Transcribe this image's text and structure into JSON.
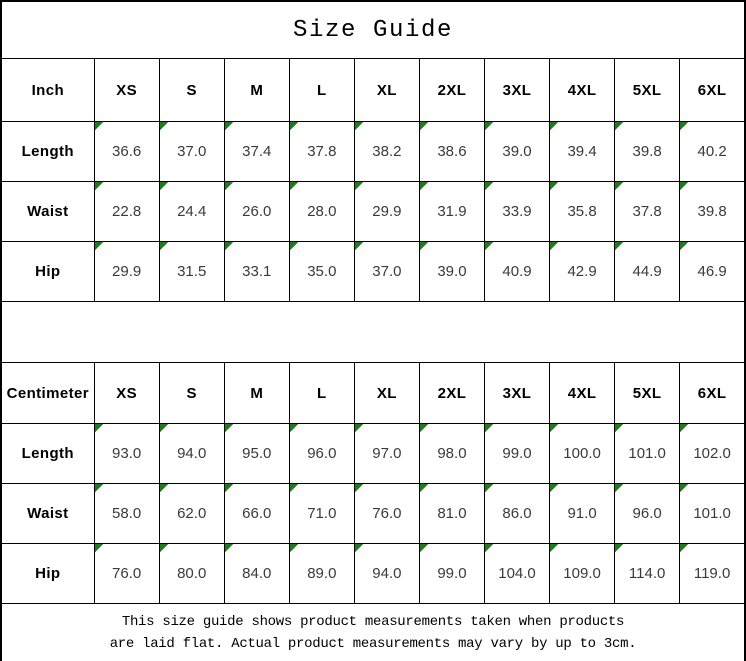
{
  "title": "Size Guide",
  "colors": {
    "background": "#ffffff",
    "border": "#000000",
    "text_indicator_green": "#1e7c1e",
    "value_text": "#3a3a3a"
  },
  "footer_note": {
    "line1": "This size guide shows product measurements taken when products",
    "line2": "are laid flat. Actual product measurements may vary by up to 3cm."
  },
  "chart_data": [
    {
      "type": "table",
      "title": "Size Guide",
      "unit_label": "Inch",
      "sizes": [
        "XS",
        "S",
        "M",
        "L",
        "XL",
        "2XL",
        "3XL",
        "4XL",
        "5XL",
        "6XL"
      ],
      "rows": [
        {
          "label": "Length",
          "values": [
            "36.6",
            "37.0",
            "37.4",
            "37.8",
            "38.2",
            "38.6",
            "39.0",
            "39.4",
            "39.8",
            "40.2"
          ]
        },
        {
          "label": "Waist",
          "values": [
            "22.8",
            "24.4",
            "26.0",
            "28.0",
            "29.9",
            "31.9",
            "33.9",
            "35.8",
            "37.8",
            "39.8"
          ]
        },
        {
          "label": "Hip",
          "values": [
            "29.9",
            "31.5",
            "33.1",
            "35.0",
            "37.0",
            "39.0",
            "40.9",
            "42.9",
            "44.9",
            "46.9"
          ]
        }
      ]
    },
    {
      "type": "table",
      "title": "Size Guide",
      "unit_label": "Centimeter",
      "sizes": [
        "XS",
        "S",
        "M",
        "L",
        "XL",
        "2XL",
        "3XL",
        "4XL",
        "5XL",
        "6XL"
      ],
      "rows": [
        {
          "label": "Length",
          "values": [
            "93.0",
            "94.0",
            "95.0",
            "96.0",
            "97.0",
            "98.0",
            "99.0",
            "100.0",
            "101.0",
            "102.0"
          ]
        },
        {
          "label": "Waist",
          "values": [
            "58.0",
            "62.0",
            "66.0",
            "71.0",
            "76.0",
            "81.0",
            "86.0",
            "91.0",
            "96.0",
            "101.0"
          ]
        },
        {
          "label": "Hip",
          "values": [
            "76.0",
            "80.0",
            "84.0",
            "89.0",
            "94.0",
            "99.0",
            "104.0",
            "109.0",
            "114.0",
            "119.0"
          ]
        }
      ]
    }
  ]
}
